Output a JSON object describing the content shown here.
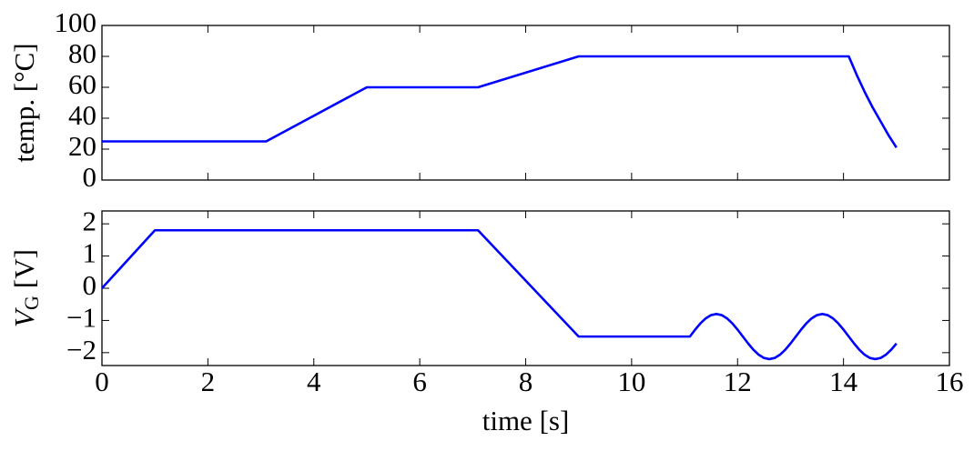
{
  "chart_data": [
    {
      "type": "line",
      "y_label": "temp. [°C]",
      "xlim": [
        0,
        16
      ],
      "ylim": [
        0,
        100
      ],
      "yticks": [
        0,
        20,
        40,
        60,
        80,
        100
      ],
      "series": [
        {
          "color": "#0000ff",
          "x": [
            0,
            3.1,
            5,
            7.1,
            9,
            14.1,
            14.25,
            14.4,
            14.55,
            14.7,
            14.85,
            15
          ],
          "values": [
            25,
            25,
            60,
            60,
            80,
            80,
            68,
            57,
            47,
            38,
            29,
            21
          ]
        }
      ]
    },
    {
      "type": "line",
      "y_label": {
        "symbol": "V",
        "subscript": "G",
        "unit": "[V]"
      },
      "x_label": "time [s]",
      "xlim": [
        0,
        16
      ],
      "xticks": [
        0,
        2,
        4,
        6,
        8,
        10,
        12,
        14,
        16
      ],
      "ylim": [
        -2.4,
        2.4
      ],
      "yticks": [
        {
          "value": -2,
          "label": "−2"
        },
        {
          "value": -1,
          "label": "−1"
        },
        0,
        1,
        2
      ],
      "series": [
        {
          "color": "#0000ff",
          "x": [
            0,
            1,
            7.1,
            9,
            11.1,
            11.2,
            11.3,
            11.4,
            11.5,
            11.6,
            11.7,
            11.8,
            11.9,
            12.0,
            12.1,
            12.2,
            12.3,
            12.4,
            12.5,
            12.6,
            12.7,
            12.8,
            12.9,
            13.0,
            13.1,
            13.2,
            13.3,
            13.4,
            13.5,
            13.6,
            13.7,
            13.8,
            13.9,
            14.0,
            14.1,
            14.2,
            14.3,
            14.4,
            14.5,
            14.6,
            14.7,
            14.8,
            14.9,
            15.0
          ],
          "values": [
            0,
            1.8,
            1.8,
            -1.5,
            -1.5,
            -1.284,
            -1.088,
            -0.934,
            -0.834,
            -0.8,
            -0.834,
            -0.934,
            -1.088,
            -1.284,
            -1.5,
            -1.716,
            -1.912,
            -2.066,
            -2.166,
            -2.2,
            -2.166,
            -2.066,
            -1.912,
            -1.716,
            -1.5,
            -1.284,
            -1.088,
            -0.934,
            -0.834,
            -0.8,
            -0.834,
            -0.934,
            -1.088,
            -1.284,
            -1.5,
            -1.716,
            -1.912,
            -2.066,
            -2.166,
            -2.2,
            -2.166,
            -2.066,
            -1.912,
            -1.716
          ]
        }
      ]
    }
  ]
}
